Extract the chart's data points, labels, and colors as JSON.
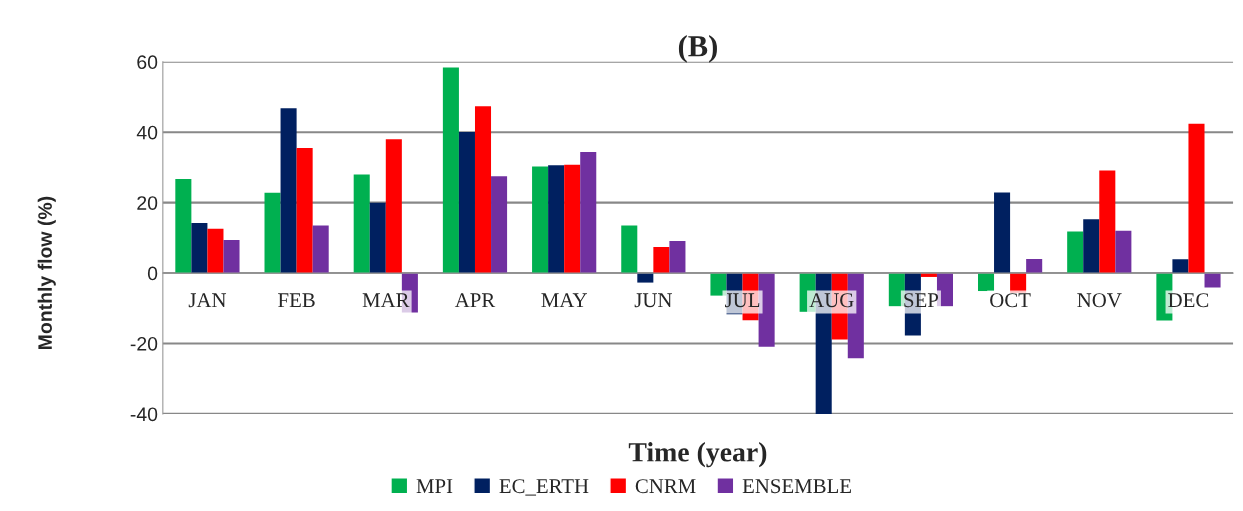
{
  "chart_data": {
    "type": "bar",
    "title": "(B)",
    "xlabel": "Time (year)",
    "ylabel": "Monthly flow (%)",
    "categories": [
      "JAN",
      "FEB",
      "MAR",
      "APR",
      "MAY",
      "JUN",
      "JUL",
      "AUG",
      "SEP",
      "OCT",
      "NOV",
      "DEC"
    ],
    "series": [
      {
        "name": "MPI",
        "color": "#00b050",
        "values": [
          26.7,
          22.8,
          28,
          58.4,
          30.3,
          13.5,
          -6.4,
          -11,
          -9.4,
          -5.1,
          11.8,
          -13.5
        ]
      },
      {
        "name": "EC_ERTH",
        "color": "#002060",
        "values": [
          14.2,
          46.8,
          20,
          40.1,
          30.6,
          -2.7,
          -11.7,
          -40,
          -17.7,
          22.9,
          15.3,
          3.9
        ]
      },
      {
        "name": "CNRM",
        "color": "#ff0000",
        "values": [
          12.6,
          35.5,
          38,
          47.4,
          30.8,
          7.4,
          -13.4,
          -18.9,
          -1.1,
          -5.6,
          29.1,
          42.4
        ]
      },
      {
        "name": "ENSEMBLE",
        "color": "#7030a0",
        "values": [
          9.4,
          13.5,
          -11.2,
          27.5,
          34.4,
          9.1,
          -20.9,
          -24.2,
          -9.4,
          4.0,
          12.0,
          -4.1
        ]
      }
    ],
    "ylim": [
      -40,
      60
    ],
    "yticks": [
      -40,
      -20,
      0,
      20,
      40,
      60
    ],
    "grid": "y",
    "legend": "bottom"
  }
}
